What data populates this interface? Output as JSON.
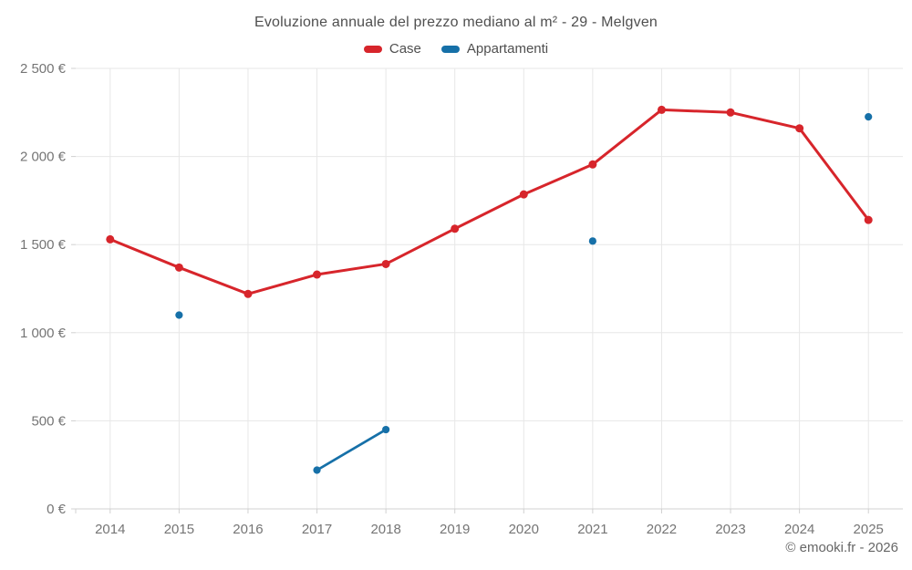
{
  "title": "Evoluzione annuale del prezzo mediano al m² - 29 - Melgven",
  "footer": "© emooki.fr - 2026",
  "colors": {
    "case_red": "#d7252b",
    "appartamenti_blue": "#1670a8",
    "grid": "#e7e7e7",
    "axis": "#d0d0d0",
    "axis_label": "#757575",
    "title_text": "#4f4f4f",
    "footer_text": "#666666",
    "background": "#ffffff"
  },
  "chart_data": {
    "type": "line",
    "title": "Evoluzione annuale del prezzo mediano al m² - 29 - Melgven",
    "xlabel": "",
    "ylabel": "",
    "categories": [
      "2014",
      "2015",
      "2016",
      "2017",
      "2018",
      "2019",
      "2020",
      "2021",
      "2022",
      "2023",
      "2024",
      "2025"
    ],
    "series": [
      {
        "name": "Case",
        "color": "#d7252b",
        "values": [
          1530,
          1370,
          1220,
          1330,
          1390,
          1590,
          1785,
          1955,
          2265,
          2250,
          2160,
          1640
        ]
      },
      {
        "name": "Appartamenti",
        "color": "#1670a8",
        "values": [
          null,
          1100,
          null,
          220,
          450,
          null,
          null,
          1520,
          null,
          null,
          null,
          2225
        ]
      }
    ],
    "ylim": [
      0,
      2500
    ],
    "ytick_step": 500,
    "ytick_labels": [
      "0 €",
      "500 €",
      "1 000 €",
      "1 500 €",
      "2 000 €",
      "2 500 €"
    ],
    "grid": true,
    "legend_position": "top",
    "currency": "€"
  }
}
